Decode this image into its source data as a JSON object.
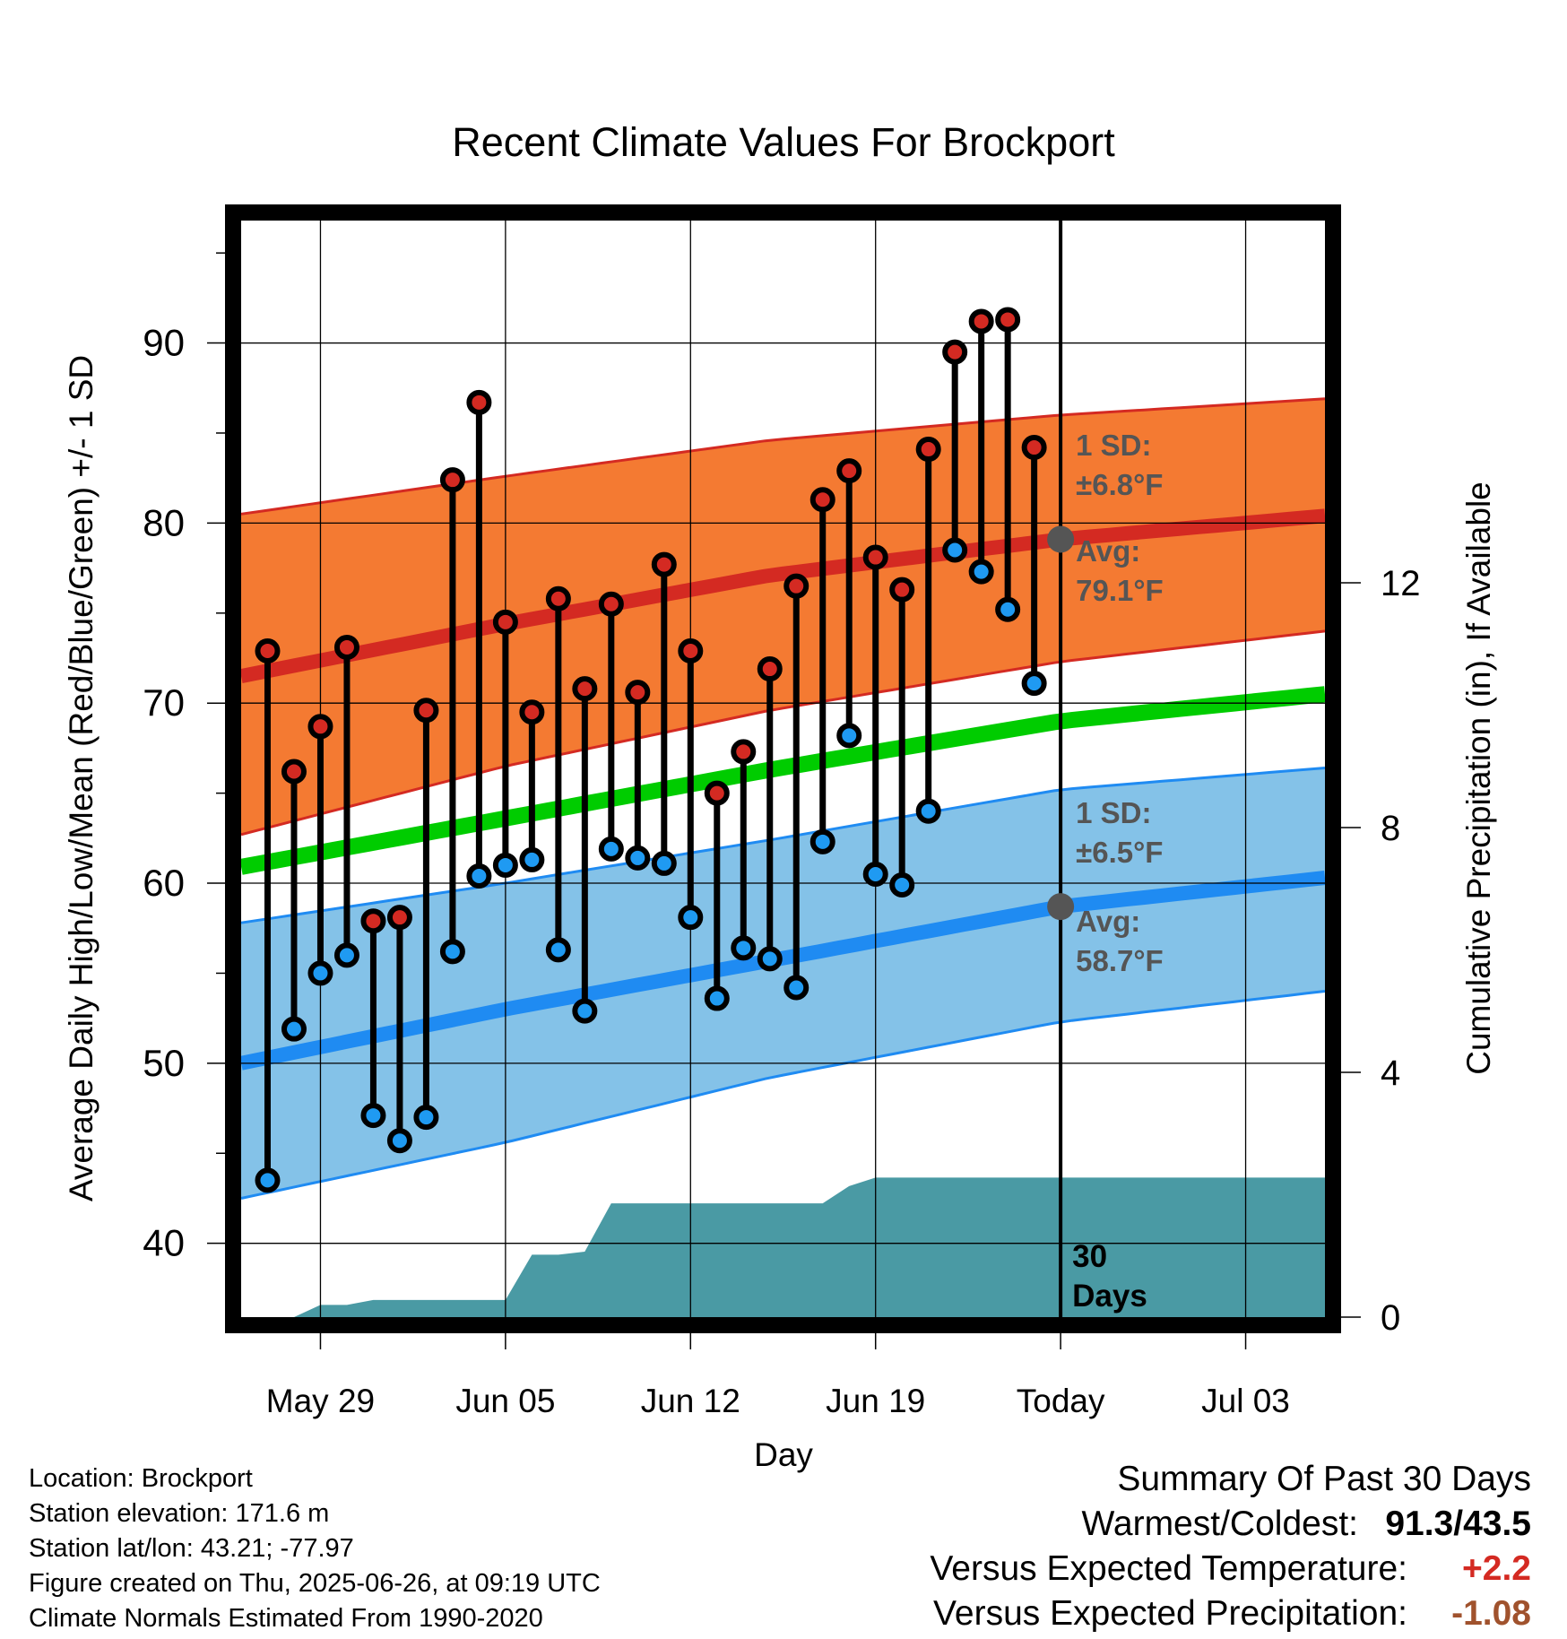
{
  "colors": {
    "high_band": "#f47a32",
    "high_band_edge": "#d42a22",
    "high_mean": "#d42a22",
    "low_band": "#84c2e8",
    "low_band_edge": "#1f8bf2",
    "low_mean": "#1f8bf2",
    "avg_mean": "#00cc00",
    "precip_fill": "#4a9aa4",
    "high_dot": "#d42a22",
    "low_dot": "#1f9af2",
    "annotation_text": "#555555",
    "annotation_dot": "#555555",
    "temp_anomaly": "#d42a22",
    "precip_anomaly": "#a0522d"
  },
  "chart_data": {
    "type": "line",
    "title": "Recent Climate Values For Brockport",
    "xlabel": "Day",
    "ylabel": "Average Daily High/Low/Mean (Red/Blue/Green) +/- 1 SD",
    "y2label": "Cumulative Precipitation (in), If Available",
    "x_start_date": "2025-05-26",
    "x_end_date": "2025-07-06",
    "x_tick_dates": [
      "2025-05-29",
      "2025-06-05",
      "2025-06-12",
      "2025-06-19",
      "2025-06-26",
      "2025-07-03"
    ],
    "x_tick_labels": [
      "May 29",
      "Jun 05",
      "Jun 12",
      "Jun 19",
      "Today",
      "Jul 03"
    ],
    "ylim": [
      35.9,
      96.8
    ],
    "y_ticks": [
      40,
      50,
      60,
      70,
      80,
      90
    ],
    "y2lim": [
      0,
      17.92
    ],
    "y2_ticks": [
      0,
      4,
      8,
      12
    ],
    "grid": true,
    "today_date": "2025-06-26",
    "normals": {
      "dates": [
        "2025-05-26",
        "2025-06-05",
        "2025-06-15",
        "2025-06-26",
        "2025-07-06"
      ],
      "high_mean": [
        71.5,
        74.4,
        77.1,
        79.1,
        80.4
      ],
      "high_plus_sd": [
        80.5,
        82.6,
        84.6,
        86.0,
        86.9
      ],
      "high_minus_sd": [
        62.7,
        66.5,
        69.6,
        72.3,
        74.0
      ],
      "avg_mean": [
        60.9,
        63.6,
        66.3,
        69.0,
        70.5
      ],
      "low_mean": [
        50.0,
        53.0,
        55.7,
        58.7,
        60.3
      ],
      "low_plus_sd": [
        57.8,
        60.0,
        62.4,
        65.2,
        66.4
      ],
      "low_minus_sd": [
        42.5,
        45.6,
        49.2,
        52.3,
        54.0
      ]
    },
    "daily_dates": [
      "2025-05-27",
      "2025-05-28",
      "2025-05-29",
      "2025-05-30",
      "2025-05-31",
      "2025-06-01",
      "2025-06-02",
      "2025-06-03",
      "2025-06-04",
      "2025-06-05",
      "2025-06-06",
      "2025-06-07",
      "2025-06-08",
      "2025-06-09",
      "2025-06-10",
      "2025-06-11",
      "2025-06-12",
      "2025-06-13",
      "2025-06-14",
      "2025-06-15",
      "2025-06-16",
      "2025-06-17",
      "2025-06-18",
      "2025-06-19",
      "2025-06-20",
      "2025-06-21",
      "2025-06-22",
      "2025-06-23",
      "2025-06-24",
      "2025-06-25"
    ],
    "series": [
      {
        "name": "High",
        "values": [
          72.9,
          66.2,
          68.7,
          73.1,
          57.9,
          58.1,
          69.6,
          82.4,
          86.7,
          74.5,
          69.5,
          75.8,
          70.8,
          75.5,
          70.6,
          77.7,
          72.9,
          65.0,
          67.3,
          71.9,
          76.5,
          81.3,
          82.9,
          78.1,
          76.3,
          84.1,
          89.5,
          91.2,
          91.3,
          84.2
        ]
      },
      {
        "name": "Low",
        "values": [
          43.5,
          51.9,
          55.0,
          56.0,
          47.1,
          45.7,
          47.0,
          56.2,
          60.4,
          61.0,
          61.3,
          56.3,
          52.9,
          61.9,
          61.4,
          61.1,
          58.1,
          53.6,
          56.4,
          55.8,
          54.2,
          62.3,
          68.2,
          60.5,
          59.9,
          64.0,
          78.5,
          77.3,
          75.2,
          71.1
        ]
      }
    ],
    "precip": {
      "dates": [
        "2025-05-26",
        "2025-05-28",
        "2025-05-29",
        "2025-05-30",
        "2025-05-31",
        "2025-06-05",
        "2025-06-06",
        "2025-06-07",
        "2025-06-08",
        "2025-06-09",
        "2025-06-10",
        "2025-06-17",
        "2025-06-18",
        "2025-06-19",
        "2025-06-20",
        "2025-07-06"
      ],
      "values": [
        0.0,
        0.0,
        0.2,
        0.2,
        0.28,
        0.28,
        1.02,
        1.02,
        1.07,
        1.86,
        1.86,
        1.86,
        2.14,
        2.28,
        2.28,
        2.28
      ]
    },
    "annotations": {
      "high_sd_label": "1 SD:",
      "high_sd_value": "±6.8°F",
      "high_avg_label": "Avg:",
      "high_avg_value": "79.1°F",
      "high_avg_today": 79.1,
      "low_sd_label": "1 SD:",
      "low_sd_value": "±6.5°F",
      "low_avg_label": "Avg:",
      "low_avg_value": "58.7°F",
      "low_avg_today": 58.7,
      "period_num": "30",
      "period_unit": "Days"
    }
  },
  "meta": {
    "location": "Location: Brockport",
    "elevation": "Station elevation: 171.6 m",
    "latlon": "Station lat/lon: 43.21; -77.97",
    "created": "Figure created on Thu, 2025-06-26, at 09:19 UTC",
    "normals": "Climate Normals Estimated From 1990-2020"
  },
  "summary": {
    "title": "Summary Of Past 30 Days",
    "warm_cold_label": "Warmest/Coldest:",
    "warm_cold_value": "91.3/43.5",
    "temp_label": "Versus Expected Temperature:",
    "temp_value": "+2.2",
    "precip_label": "Versus Expected Precipitation:",
    "precip_value": "-1.08"
  }
}
